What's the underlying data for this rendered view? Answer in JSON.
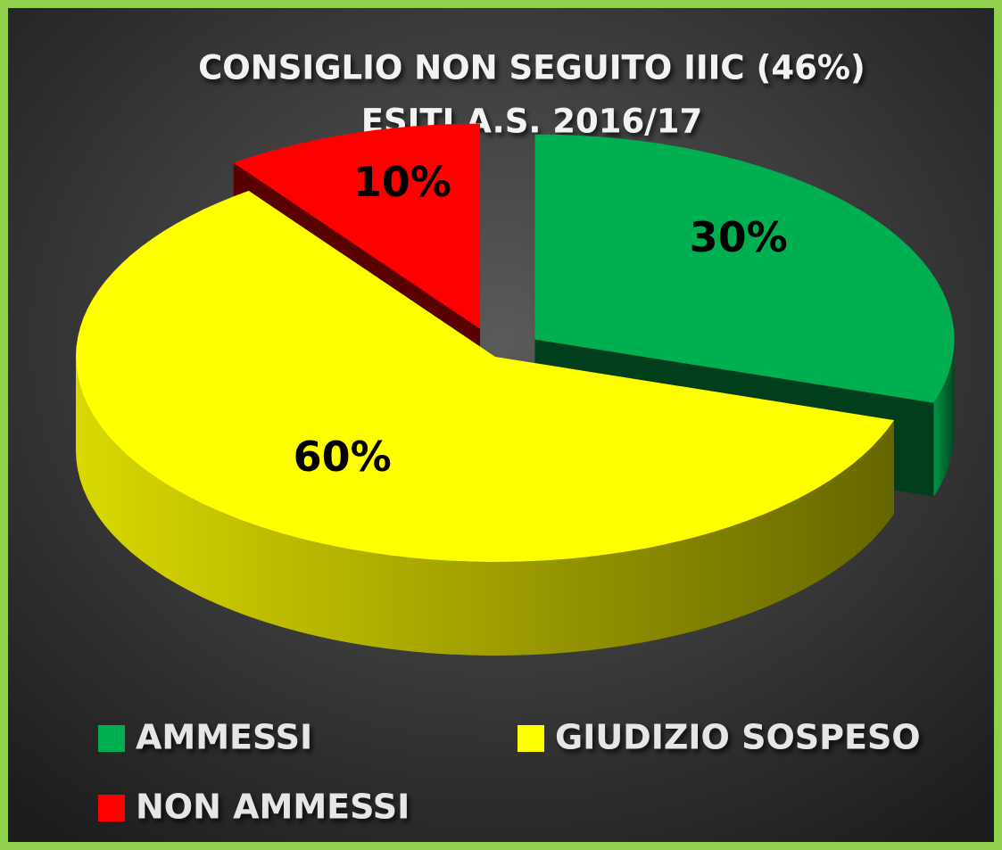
{
  "chart_data": {
    "type": "pie",
    "title": "CONSIGLIO NON SEGUITO IIIC (46%)",
    "subtitle": "ESITI A.S. 2016/17",
    "categories": [
      "AMMESSI",
      "GIUDIZIO SOSPESO",
      "NON AMMESSI"
    ],
    "values": [
      30,
      60,
      10
    ],
    "value_labels": [
      "30%",
      "60%",
      "10%"
    ],
    "colors": [
      "#00b050",
      "#ffff00",
      "#ff0000"
    ],
    "legend": "bottom"
  }
}
